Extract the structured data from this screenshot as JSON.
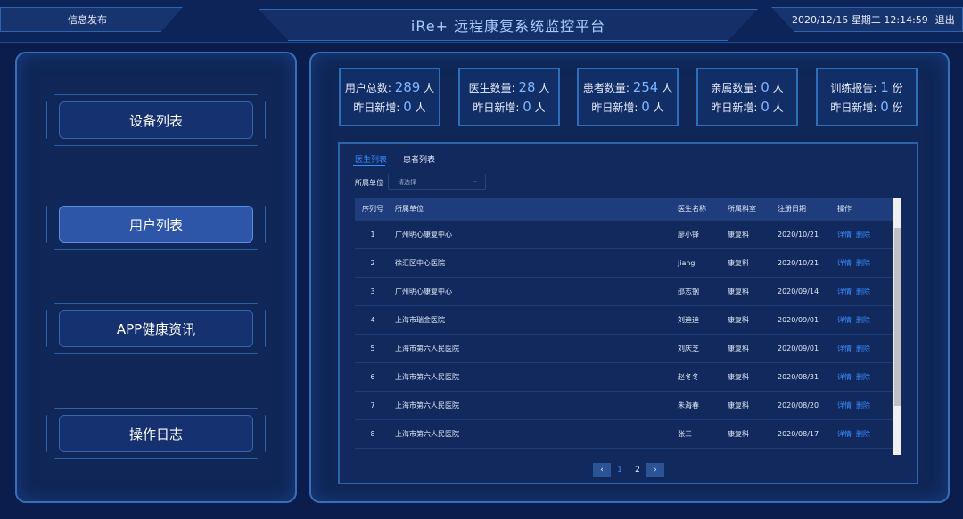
{
  "header": {
    "left_label": "信息发布",
    "title": "iRe+ 远程康复系统监控平台",
    "datetime": "2020/12/15 星期二 12:14:59",
    "logout": "退出"
  },
  "sidebar": {
    "items": [
      {
        "label": "设备列表",
        "active": false
      },
      {
        "label": "用户列表",
        "active": true
      },
      {
        "label": "APP健康资讯",
        "active": false
      },
      {
        "label": "操作日志",
        "active": false
      }
    ]
  },
  "stats": [
    {
      "label": "用户总数:",
      "value": "289",
      "unit": "人",
      "sub_label": "昨日新增:",
      "sub_value": "0",
      "sub_unit": "人"
    },
    {
      "label": "医生数量:",
      "value": "28",
      "unit": "人",
      "sub_label": "昨日新增:",
      "sub_value": "0",
      "sub_unit": "人"
    },
    {
      "label": "患者数量:",
      "value": "254",
      "unit": "人",
      "sub_label": "昨日新增:",
      "sub_value": "0",
      "sub_unit": "人"
    },
    {
      "label": "亲属数量:",
      "value": "0",
      "unit": "人",
      "sub_label": "昨日新增:",
      "sub_value": "0",
      "sub_unit": "人"
    },
    {
      "label": "训练报告:",
      "value": "1",
      "unit": "份",
      "sub_label": "昨日新增:",
      "sub_value": "0",
      "sub_unit": "份"
    }
  ],
  "tabs": [
    {
      "label": "医生列表",
      "active": true
    },
    {
      "label": "患者列表",
      "active": false
    }
  ],
  "filter": {
    "label": "所属单位",
    "placeholder": "请选择"
  },
  "table": {
    "columns": [
      "序列号",
      "所属单位",
      "医生名称",
      "所属科室",
      "注册日期",
      "操作"
    ],
    "rows": [
      [
        "1",
        "广州明心康复中心",
        "廖小锋",
        "康复科",
        "2020/10/21"
      ],
      [
        "2",
        "徐汇区中心医院",
        "jiang",
        "康复科",
        "2020/10/21"
      ],
      [
        "3",
        "广州明心康复中心",
        "邵志钢",
        "康复科",
        "2020/09/14"
      ],
      [
        "4",
        "上海市瑞金医院",
        "刘迪迪",
        "康复科",
        "2020/09/01"
      ],
      [
        "5",
        "上海市第六人民医院",
        "刘庆芝",
        "康复科",
        "2020/09/01"
      ],
      [
        "6",
        "上海市第六人民医院",
        "赵冬冬",
        "康复科",
        "2020/08/31"
      ],
      [
        "7",
        "上海市第六人民医院",
        "朱海春",
        "康复科",
        "2020/08/20"
      ],
      [
        "8",
        "上海市第六人民医院",
        "张三",
        "康复科",
        "2020/08/17"
      ]
    ],
    "actions": {
      "detail": "详情",
      "delete": "删除"
    }
  },
  "pagination": {
    "pages": [
      "1",
      "2"
    ],
    "current": "1"
  },
  "colors": {
    "accent": "#3b8cff",
    "background": "#0b1d4c",
    "active_button": "#2d55a8"
  }
}
